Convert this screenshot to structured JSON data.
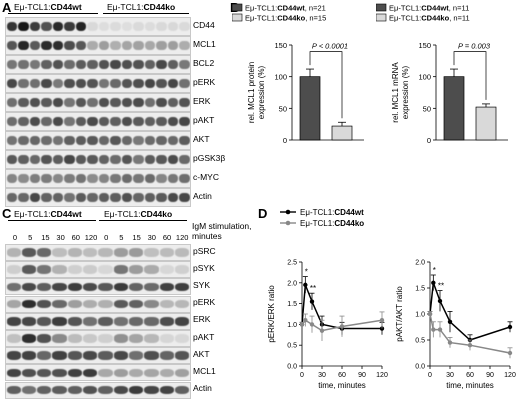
{
  "letters": {
    "a": "A",
    "b": "B",
    "c": "C",
    "d": "D"
  },
  "groups": {
    "wt_prefix": "Eμ-TCL1:",
    "wt_name": "CD44wt",
    "ko_prefix": "Eμ-TCL1:",
    "ko_name": "CD44ko"
  },
  "panel_a": {
    "labels": [
      "CD44",
      "MCL1",
      "BCL2",
      "pERK",
      "ERK",
      "pAKT",
      "AKT",
      "pGSK3β",
      "c-MYC",
      "Actin"
    ]
  },
  "panel_c": {
    "stim_label_1": "IgM stimulation,",
    "stim_label_2": "minutes",
    "timepoints": [
      "0",
      "5",
      "15",
      "30",
      "60",
      "120",
      "0",
      "5",
      "15",
      "30",
      "60",
      "120"
    ],
    "labels": [
      "pSRC",
      "pSYK",
      "SYK",
      "pERK",
      "ERK",
      "pAKT",
      "AKT",
      "MCL1",
      "Actin"
    ]
  },
  "chart_data": [
    {
      "type": "bar",
      "panel": "B-left",
      "ylabel_1": "rel. MCL1 protein",
      "ylabel_2": "expression (%)",
      "legend": [
        {
          "prefix": "Eμ-TCL1:",
          "name": "CD44wt",
          "suffix": ", n=21",
          "color": "#4d4d4d"
        },
        {
          "prefix": "Eμ-TCL1:",
          "name": "CD44ko",
          "suffix": ", n=15",
          "color": "#d9d9d9"
        }
      ],
      "series": [
        {
          "name": "CD44wt",
          "values": [
            100
          ],
          "error": [
            12
          ]
        },
        {
          "name": "CD44ko",
          "values": [
            22
          ],
          "error": [
            6
          ]
        }
      ],
      "pvalue": "P < 0.0001",
      "ylim": [
        0,
        150
      ],
      "yticks": [
        "0",
        "50",
        "100",
        "150"
      ]
    },
    {
      "type": "bar",
      "panel": "B-right",
      "ylabel_1": "rel. MCL1 mRNA",
      "ylabel_2": "expression (%)",
      "legend": [
        {
          "prefix": "Eμ-TCL1:",
          "name": "CD44wt",
          "suffix": ", n=11",
          "color": "#4d4d4d"
        },
        {
          "prefix": "Eμ-TCL1:",
          "name": "CD44ko",
          "suffix": ", n=11",
          "color": "#d9d9d9"
        }
      ],
      "series": [
        {
          "name": "CD44wt",
          "values": [
            100
          ],
          "error": [
            12
          ]
        },
        {
          "name": "CD44ko",
          "values": [
            52
          ],
          "error": [
            5
          ]
        }
      ],
      "pvalue": "P = 0.003",
      "ylim": [
        0,
        150
      ],
      "yticks": [
        "0",
        "50",
        "100",
        "150"
      ]
    },
    {
      "type": "line",
      "panel": "D-left",
      "legend": [
        {
          "prefix": "Eμ-TCL1:",
          "name": "CD44wt",
          "color": "#000000"
        },
        {
          "prefix": "Eμ-TCL1:",
          "name": "CD44ko",
          "color": "#888888"
        }
      ],
      "ylabel": "pERK/ERK ratio",
      "xlabel": "time, minutes",
      "x": [
        0,
        5,
        15,
        30,
        60,
        120
      ],
      "series": [
        {
          "name": "CD44wt",
          "values": [
            1.0,
            1.95,
            1.55,
            1.0,
            0.9,
            0.9
          ],
          "error": [
            0.05,
            0.2,
            0.2,
            0.2,
            0.15,
            0.15
          ],
          "color": "#000000"
        },
        {
          "name": "CD44ko",
          "values": [
            1.0,
            1.1,
            1.0,
            0.85,
            0.95,
            1.1
          ],
          "error": [
            0.05,
            0.15,
            0.2,
            0.25,
            0.25,
            0.2
          ],
          "color": "#888888"
        }
      ],
      "stars": [
        {
          "x": 5,
          "text": "*"
        },
        {
          "x": 15,
          "text": "**"
        }
      ],
      "ylim": [
        0,
        2.5
      ],
      "yticks": [
        "0.0",
        "0.5",
        "1.0",
        "1.5",
        "2.0",
        "2.5"
      ],
      "xticks": [
        "0",
        "30",
        "60",
        "90",
        "120"
      ]
    },
    {
      "type": "line",
      "panel": "D-right",
      "ylabel": "pAKT/AKT ratio",
      "xlabel": "time, minutes",
      "x": [
        0,
        5,
        15,
        30,
        60,
        120
      ],
      "series": [
        {
          "name": "CD44wt",
          "values": [
            1.0,
            1.6,
            1.25,
            0.85,
            0.5,
            0.75
          ],
          "error": [
            0.05,
            0.15,
            0.2,
            0.2,
            0.1,
            0.1
          ],
          "color": "#000000"
        },
        {
          "name": "CD44ko",
          "values": [
            1.0,
            0.7,
            0.7,
            0.45,
            0.4,
            0.25
          ],
          "error": [
            0.05,
            0.15,
            0.15,
            0.1,
            0.1,
            0.1
          ],
          "color": "#888888"
        }
      ],
      "stars": [
        {
          "x": 5,
          "text": "*"
        },
        {
          "x": 15,
          "text": "**"
        }
      ],
      "ylim": [
        0,
        2.0
      ],
      "yticks": [
        "0.0",
        "0.5",
        "1.0",
        "1.5",
        "2.0"
      ],
      "xticks": [
        "0",
        "30",
        "60",
        "90",
        "120"
      ]
    }
  ]
}
